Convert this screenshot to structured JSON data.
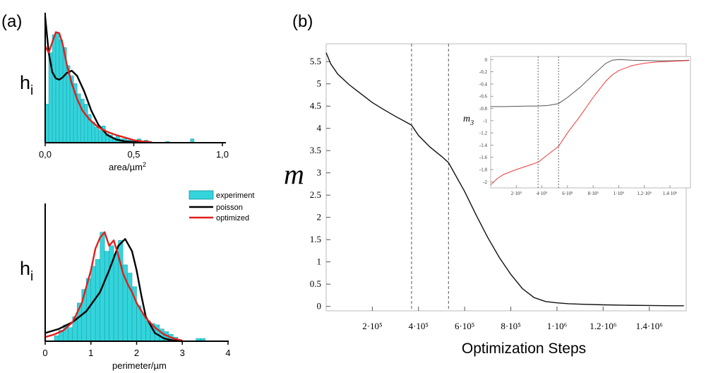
{
  "panels": {
    "a": "(a)",
    "b": "(b)"
  },
  "legend": {
    "experiment": "experiment",
    "poisson": "poisson",
    "optimized": "optimized"
  },
  "colors": {
    "experiment": "#33d4dc",
    "poisson": "#000000",
    "optimized": "#e0201c",
    "inset_black": "#555555"
  },
  "chart_data": [
    {
      "type": "bar",
      "panel": "(a) top",
      "ylabel": "h",
      "ylabel_sub": "i",
      "xlabel": "area/µm",
      "xlabel_sup": "2",
      "xlim": [
        0,
        1
      ],
      "xticks": [
        "0,0",
        "0,5",
        "1,0"
      ],
      "ylim": [
        0,
        1
      ],
      "bar_width": 0.02,
      "bars": [
        {
          "x": 0.01,
          "y": 0.3
        },
        {
          "x": 0.03,
          "y": 0.7
        },
        {
          "x": 0.05,
          "y": 0.84
        },
        {
          "x": 0.07,
          "y": 0.86
        },
        {
          "x": 0.09,
          "y": 0.8
        },
        {
          "x": 0.11,
          "y": 0.74
        },
        {
          "x": 0.13,
          "y": 0.6
        },
        {
          "x": 0.15,
          "y": 0.52
        },
        {
          "x": 0.17,
          "y": 0.46
        },
        {
          "x": 0.19,
          "y": 0.38
        },
        {
          "x": 0.21,
          "y": 0.34
        },
        {
          "x": 0.23,
          "y": 0.3
        },
        {
          "x": 0.25,
          "y": 0.22
        },
        {
          "x": 0.27,
          "y": 0.16
        },
        {
          "x": 0.29,
          "y": 0.12
        },
        {
          "x": 0.31,
          "y": 0.1
        },
        {
          "x": 0.33,
          "y": 0.13
        },
        {
          "x": 0.35,
          "y": 0.07
        },
        {
          "x": 0.37,
          "y": 0.06
        },
        {
          "x": 0.39,
          "y": 0.04
        },
        {
          "x": 0.41,
          "y": 0.05
        },
        {
          "x": 0.43,
          "y": 0.03
        },
        {
          "x": 0.45,
          "y": 0.03
        },
        {
          "x": 0.47,
          "y": 0.02
        },
        {
          "x": 0.49,
          "y": 0.02
        },
        {
          "x": 0.51,
          "y": 0.02
        },
        {
          "x": 0.53,
          "y": 0.03
        },
        {
          "x": 0.55,
          "y": 0.01
        },
        {
          "x": 0.57,
          "y": 0.02
        },
        {
          "x": 0.59,
          "y": 0.01
        },
        {
          "x": 0.69,
          "y": 0.01
        },
        {
          "x": 0.83,
          "y": 0.03
        }
      ],
      "series": [
        {
          "name": "poisson",
          "x": [
            0,
            0.02,
            0.04,
            0.06,
            0.08,
            0.1,
            0.12,
            0.15,
            0.18,
            0.22,
            0.26,
            0.3,
            0.35,
            0.4,
            0.45,
            0.5,
            0.55
          ],
          "y": [
            0.98,
            0.7,
            0.55,
            0.5,
            0.49,
            0.51,
            0.54,
            0.56,
            0.52,
            0.4,
            0.25,
            0.14,
            0.06,
            0.025,
            0.01,
            0.005,
            0.002
          ]
        },
        {
          "name": "optimized",
          "x": [
            0,
            0.02,
            0.04,
            0.06,
            0.08,
            0.1,
            0.12,
            0.15,
            0.18,
            0.21,
            0.25,
            0.3,
            0.35,
            0.4,
            0.45,
            0.5,
            0.55,
            0.6
          ],
          "y": [
            0.75,
            0.7,
            0.78,
            0.86,
            0.85,
            0.76,
            0.62,
            0.46,
            0.34,
            0.25,
            0.18,
            0.12,
            0.085,
            0.06,
            0.04,
            0.02,
            0.01,
            0.005
          ]
        }
      ]
    },
    {
      "type": "bar",
      "panel": "(a) bottom",
      "ylabel": "h",
      "ylabel_sub": "i",
      "xlabel": "perimeter/µm",
      "xlim": [
        0,
        4
      ],
      "xticks": [
        "0",
        "1",
        "2",
        "3",
        "4"
      ],
      "ylim": [
        0,
        1
      ],
      "bar_width": 0.1,
      "bars": [
        {
          "x": 0.25,
          "y": 0.04
        },
        {
          "x": 0.35,
          "y": 0.08
        },
        {
          "x": 0.45,
          "y": 0.12
        },
        {
          "x": 0.55,
          "y": 0.1
        },
        {
          "x": 0.65,
          "y": 0.18
        },
        {
          "x": 0.75,
          "y": 0.28
        },
        {
          "x": 0.85,
          "y": 0.38
        },
        {
          "x": 0.95,
          "y": 0.46
        },
        {
          "x": 1.05,
          "y": 0.55
        },
        {
          "x": 1.15,
          "y": 0.6
        },
        {
          "x": 1.25,
          "y": 0.8
        },
        {
          "x": 1.35,
          "y": 0.66
        },
        {
          "x": 1.45,
          "y": 0.7
        },
        {
          "x": 1.55,
          "y": 0.64
        },
        {
          "x": 1.65,
          "y": 0.74
        },
        {
          "x": 1.75,
          "y": 0.56
        },
        {
          "x": 1.85,
          "y": 0.5
        },
        {
          "x": 1.95,
          "y": 0.4
        },
        {
          "x": 2.05,
          "y": 0.26
        },
        {
          "x": 2.15,
          "y": 0.2
        },
        {
          "x": 2.25,
          "y": 0.15
        },
        {
          "x": 2.35,
          "y": 0.13
        },
        {
          "x": 2.45,
          "y": 0.12
        },
        {
          "x": 2.55,
          "y": 0.09
        },
        {
          "x": 2.65,
          "y": 0.07
        },
        {
          "x": 2.75,
          "y": 0.05
        },
        {
          "x": 2.85,
          "y": 0.03
        },
        {
          "x": 3.35,
          "y": 0.02
        },
        {
          "x": 3.45,
          "y": 0.02
        }
      ],
      "series": [
        {
          "name": "poisson",
          "x": [
            0,
            0.3,
            0.6,
            0.9,
            1.2,
            1.4,
            1.6,
            1.75,
            1.9,
            2.0,
            2.1,
            2.2,
            2.4,
            2.6,
            2.8,
            3.0
          ],
          "y": [
            0.06,
            0.09,
            0.14,
            0.22,
            0.36,
            0.52,
            0.7,
            0.75,
            0.66,
            0.52,
            0.34,
            0.18,
            0.06,
            0.02,
            0.005,
            0.0
          ]
        },
        {
          "name": "optimized",
          "x": [
            0,
            0.2,
            0.4,
            0.6,
            0.8,
            1.0,
            1.1,
            1.2,
            1.3,
            1.4,
            1.5,
            1.6,
            1.7,
            1.8,
            1.9,
            2.0,
            2.2,
            2.4,
            2.6,
            2.8,
            3.0
          ],
          "y": [
            0.03,
            0.05,
            0.08,
            0.14,
            0.28,
            0.52,
            0.68,
            0.76,
            0.8,
            0.7,
            0.74,
            0.63,
            0.5,
            0.42,
            0.36,
            0.28,
            0.17,
            0.1,
            0.05,
            0.02,
            0.005
          ]
        }
      ]
    },
    {
      "type": "line",
      "panel": "(b)",
      "ylabel": "m",
      "xlabel": "Optimization Steps",
      "xlim": [
        0,
        1560000
      ],
      "ylim": [
        -0.1,
        5.9
      ],
      "yticks": [
        0,
        0.5,
        1,
        1.5,
        2,
        2.5,
        3,
        3.5,
        4,
        4.5,
        5,
        5.5
      ],
      "yticklabels": [
        "0",
        "0.5",
        "1",
        "1.5",
        "2",
        "2.5",
        "3",
        "3.5",
        "4",
        "4.5",
        "5",
        "5.5"
      ],
      "xticks": [
        200000,
        400000,
        600000,
        800000,
        1000000,
        1200000,
        1400000
      ],
      "xticklabels": [
        "2·10⁵",
        "4·10⁵",
        "6·10⁵",
        "8·10⁵",
        "1·10⁶",
        "1.2·10⁶",
        "1.4·10⁶"
      ],
      "vlines": [
        370000,
        530000
      ],
      "series": [
        {
          "name": "",
          "x": [
            0,
            20000,
            50000,
            100000,
            150000,
            200000,
            250000,
            300000,
            350000,
            370000,
            400000,
            450000,
            500000,
            530000,
            600000,
            650000,
            700000,
            750000,
            800000,
            850000,
            900000,
            950000,
            1000000,
            1050000,
            1100000,
            1200000,
            1300000,
            1400000,
            1500000,
            1550000
          ],
          "y": [
            5.7,
            5.45,
            5.22,
            4.98,
            4.78,
            4.58,
            4.42,
            4.27,
            4.13,
            4.07,
            3.84,
            3.58,
            3.37,
            3.23,
            2.58,
            2.05,
            1.55,
            1.1,
            0.72,
            0.4,
            0.2,
            0.11,
            0.08,
            0.06,
            0.05,
            0.035,
            0.025,
            0.02,
            0.015,
            0.015
          ]
        }
      ],
      "inset": {
        "ylabel": "m",
        "ylabel_sub": "3",
        "xlim": [
          0,
          1560000
        ],
        "ylim": [
          -2.1,
          0.05
        ],
        "yticks": [
          0,
          -0.2,
          -0.4,
          -0.6,
          -0.8,
          -1,
          -1.2,
          -1.4,
          -1.6,
          -1.8,
          -2
        ],
        "yticklabels": [
          "0",
          "-0.2",
          "-0.4",
          "-0.6",
          "-0.8",
          "-1",
          "-1.2",
          "-1.4",
          "-1.6",
          "-1.8",
          "-2"
        ],
        "xticks": [
          200000,
          400000,
          600000,
          800000,
          1000000,
          1200000,
          1400000
        ],
        "xticklabels": [
          "2·10⁵",
          "4·10⁵",
          "6·10⁵",
          "8·10⁵",
          "1·10⁶",
          "1.2·10⁶",
          "1.4·10⁶"
        ],
        "vlines": [
          370000,
          530000
        ],
        "series": [
          {
            "name": "",
            "color": "black",
            "x": [
              0,
              100000,
              200000,
              300000,
              370000,
              450000,
              530000,
              600000,
              700000,
              800000,
              900000,
              950000,
              1000000,
              1100000,
              1200000,
              1300000,
              1400000,
              1500000,
              1550000
            ],
            "y": [
              -0.77,
              -0.77,
              -0.765,
              -0.76,
              -0.76,
              -0.75,
              -0.72,
              -0.62,
              -0.45,
              -0.25,
              -0.06,
              -0.01,
              0.0,
              -0.01,
              -0.015,
              -0.02,
              -0.02,
              -0.015,
              -0.01
            ]
          },
          {
            "name": "",
            "color": "red",
            "x": [
              0,
              50000,
              100000,
              200000,
              300000,
              370000,
              450000,
              530000,
              600000,
              700000,
              800000,
              900000,
              950000,
              1000000,
              1100000,
              1200000,
              1300000,
              1400000,
              1500000,
              1550000
            ],
            "y": [
              -2.05,
              -1.95,
              -1.88,
              -1.8,
              -1.73,
              -1.68,
              -1.55,
              -1.42,
              -1.2,
              -0.92,
              -0.62,
              -0.35,
              -0.25,
              -0.18,
              -0.1,
              -0.06,
              -0.04,
              -0.03,
              -0.02,
              -0.015
            ]
          }
        ]
      }
    }
  ]
}
